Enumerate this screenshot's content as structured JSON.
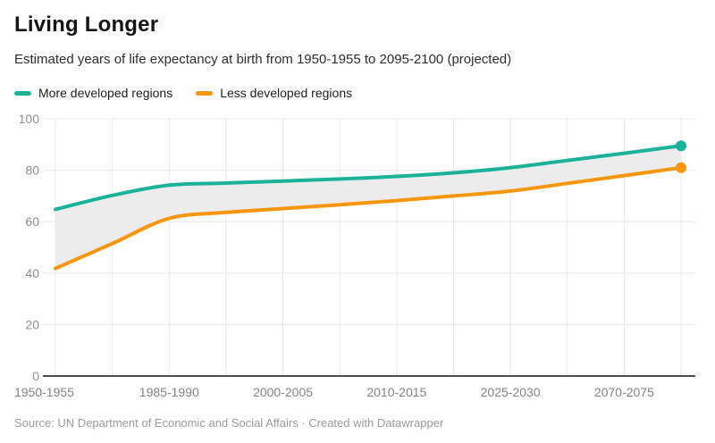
{
  "header": {
    "title": "Living Longer",
    "subtitle": "Estimated years of life expectancy at birth from 1950-1955 to 2095-2100 (projected)"
  },
  "legend": {
    "items": [
      {
        "label": "More developed regions",
        "color": "#1bb29a"
      },
      {
        "label": "Less developed regions",
        "color": "#f8960b"
      }
    ]
  },
  "footer": {
    "source": "Source: UN Department of Economic and Social Affairs · Created with Datawrapper"
  },
  "chart_data": {
    "type": "line",
    "title": "Living Longer",
    "subtitle": "Estimated years of life expectancy at birth from 1950-1955 to 2095-2100 (projected)",
    "xlabel": "",
    "ylabel": "",
    "x_tick_labels": [
      "1950-1955",
      "",
      "1985-1990",
      "",
      "2000-2005",
      "",
      "2010-2015",
      "",
      "2025-2030",
      "",
      "2070-2075",
      ""
    ],
    "y_ticks": [
      0,
      20,
      40,
      60,
      80,
      100
    ],
    "ylim": [
      0,
      100
    ],
    "grid": true,
    "legend_position": "top",
    "band_fill_between_series": true,
    "band_fill_color": "#ececec",
    "end_point_markers": true,
    "gridline_color": "#e8e8e8",
    "baseline_color": "#4f4f4f",
    "tick_label_color": "#8f8f8f",
    "series": [
      {
        "name": "More developed regions",
        "color": "#1bb29a",
        "values": [
          64.8,
          70.2,
          74.2,
          75.0,
          75.8,
          76.6,
          77.6,
          79.0,
          81.0,
          83.8,
          86.6,
          89.5
        ]
      },
      {
        "name": "Less developed regions",
        "color": "#f8960b",
        "values": [
          41.8,
          51.5,
          61.3,
          63.6,
          65.1,
          66.6,
          68.2,
          70.0,
          71.9,
          74.9,
          77.9,
          81.0
        ]
      }
    ]
  }
}
